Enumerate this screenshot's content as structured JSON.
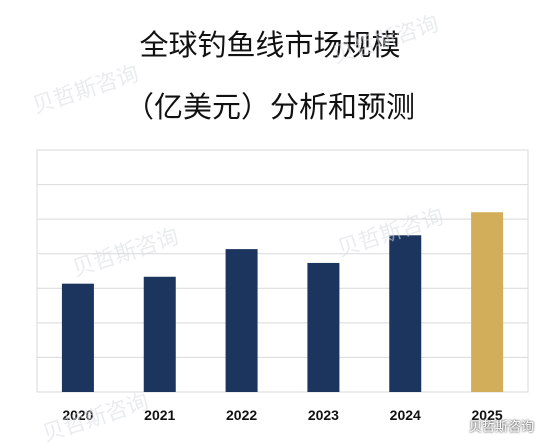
{
  "chart_data": {
    "type": "bar",
    "title": "全球钓鱼线市场规模",
    "subtitle": "（亿美元）分析和预测",
    "categories": [
      "2020",
      "2021",
      "2022",
      "2023",
      "2024",
      "2025"
    ],
    "values": [
      4.7,
      5.0,
      6.2,
      5.6,
      6.8,
      7.8
    ],
    "ylim": [
      0,
      10.5
    ],
    "grid": true,
    "colors": {
      "actual": "#1c355e",
      "forecast": "#d2ae5a",
      "grid": "#d9d9d9",
      "border": "#d9d9d9"
    }
  },
  "watermark": {
    "text": "贝哲斯咨询",
    "corner_text": "贝哲斯咨询"
  }
}
